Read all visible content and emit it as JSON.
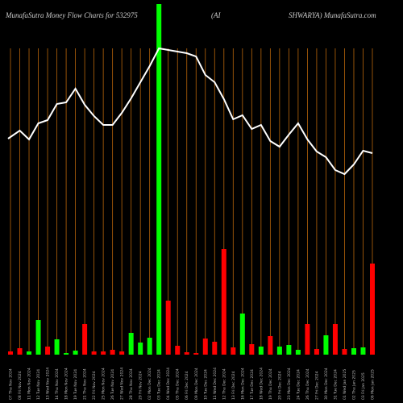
{
  "chart_data": {
    "type": "bar",
    "title": "MunafaSutra  Money Flow  Charts for 532975",
    "title_mid": "(AI",
    "title_right": "SHWARYA) MunafaSutra.com",
    "categories": [
      "07 Thu Nov 2024",
      "08 Fri Nov 2024",
      "11 Mon Nov 2024",
      "12 Tue Nov 2024",
      "13 Wed Nov 2024",
      "14 Thu Nov 2024",
      "18 Mon Nov 2024",
      "19 Tue Nov 2024",
      "21 Thu Nov 2024",
      "22 Fri Nov 2024",
      "25 Mon Nov 2024",
      "26 Tue Nov 2024",
      "27 Wed Nov 2024",
      "28 Thu Nov 2024",
      "29 Fri Nov 2024",
      "02 Mon Dec 2024",
      "03 Tue Dec 2024",
      "04 Wed Dec 2024",
      "05 Thu Dec 2024",
      "06 Fri Dec 2024",
      "09 Mon Dec 2024",
      "10 Tue Dec 2024",
      "11 Wed Dec 2024",
      "12 Thu Dec 2024",
      "13 Fri Dec 2024",
      "16 Mon Dec 2024",
      "17 Tue Dec 2024",
      "18 Wed Dec 2024",
      "19 Thu Dec 2024",
      "20 Fri Dec 2024",
      "23 Mon Dec 2024",
      "24 Tue Dec 2024",
      "26 Thu Dec 2024",
      "27 Fri Dec 2024",
      "30 Mon Dec 2024",
      "31 Tue Dec 2024",
      "01 Wed Jan 2025",
      "02 Thu Jan 2025",
      "03 Fri Jan 2025",
      "06 Mon Jan 2025"
    ],
    "values": [
      4,
      8,
      4,
      43,
      10,
      19,
      2,
      5,
      38,
      4,
      4,
      6,
      4,
      27,
      15,
      21,
      435,
      67,
      11,
      3,
      2,
      20,
      16,
      131,
      9,
      51,
      13,
      10,
      23,
      10,
      12,
      6,
      38,
      7,
      24,
      38,
      7,
      8,
      9,
      113
    ],
    "bar_colors": [
      "#ff0000",
      "#ff0000",
      "#00ff00",
      "#00ff00",
      "#ff0000",
      "#00ff00",
      "#00ff00",
      "#00ff00",
      "#ff0000",
      "#ff0000",
      "#ff0000",
      "#ff0000",
      "#ff0000",
      "#00ff00",
      "#00ff00",
      "#00ff00",
      "#00ff00",
      "#ff0000",
      "#ff0000",
      "#ff0000",
      "#ff0000",
      "#ff0000",
      "#ff0000",
      "#ff0000",
      "#ff0000",
      "#00ff00",
      "#ff0000",
      "#00ff00",
      "#ff0000",
      "#00ff00",
      "#00ff00",
      "#00ff00",
      "#ff0000",
      "#ff0000",
      "#00ff00",
      "#ff0000",
      "#ff0000",
      "#00ff00",
      "#00ff00",
      "#ff0000"
    ],
    "line_values": [
      268,
      278,
      267,
      287,
      291,
      311,
      313,
      330,
      310,
      296,
      285,
      285,
      300,
      318,
      338,
      358,
      380,
      378,
      376,
      374,
      370,
      347,
      338,
      317,
      292,
      297,
      280,
      285,
      265,
      258,
      273,
      287,
      267,
      252,
      245,
      229,
      224,
      236,
      253,
      250
    ],
    "line_color": "#ffffff",
    "grid_color": "#b8650a",
    "ylim": [
      0,
      440
    ]
  }
}
